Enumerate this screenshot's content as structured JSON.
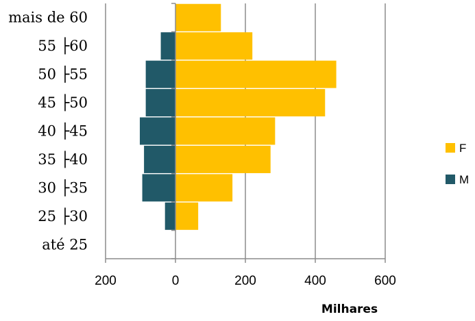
{
  "chart_data": {
    "type": "bar",
    "orientation": "horizontal",
    "title": "",
    "xlabel": "Milhares",
    "ylabel": "",
    "categories": [
      "até 25",
      "25 ├30",
      "30 ├35",
      "35 ├40",
      "40 ├45",
      "45 ├50",
      "50 ├55",
      "55 ├60",
      "mais de 60"
    ],
    "xlim": [
      -200,
      600
    ],
    "x_ticks": [
      -200,
      0,
      200,
      400,
      600
    ],
    "x_tick_labels": [
      "200",
      "0",
      "200",
      "400",
      "600"
    ],
    "grid": true,
    "legend_position": "right",
    "series": [
      {
        "name": "F",
        "color": "#FFC000",
        "values": [
          0,
          65,
          163,
          272,
          285,
          428,
          460,
          220,
          130
        ]
      },
      {
        "name": "M",
        "color": "#215968",
        "values": [
          0,
          -30,
          -95,
          -90,
          -102,
          -85,
          -85,
          -42,
          0
        ]
      }
    ]
  }
}
